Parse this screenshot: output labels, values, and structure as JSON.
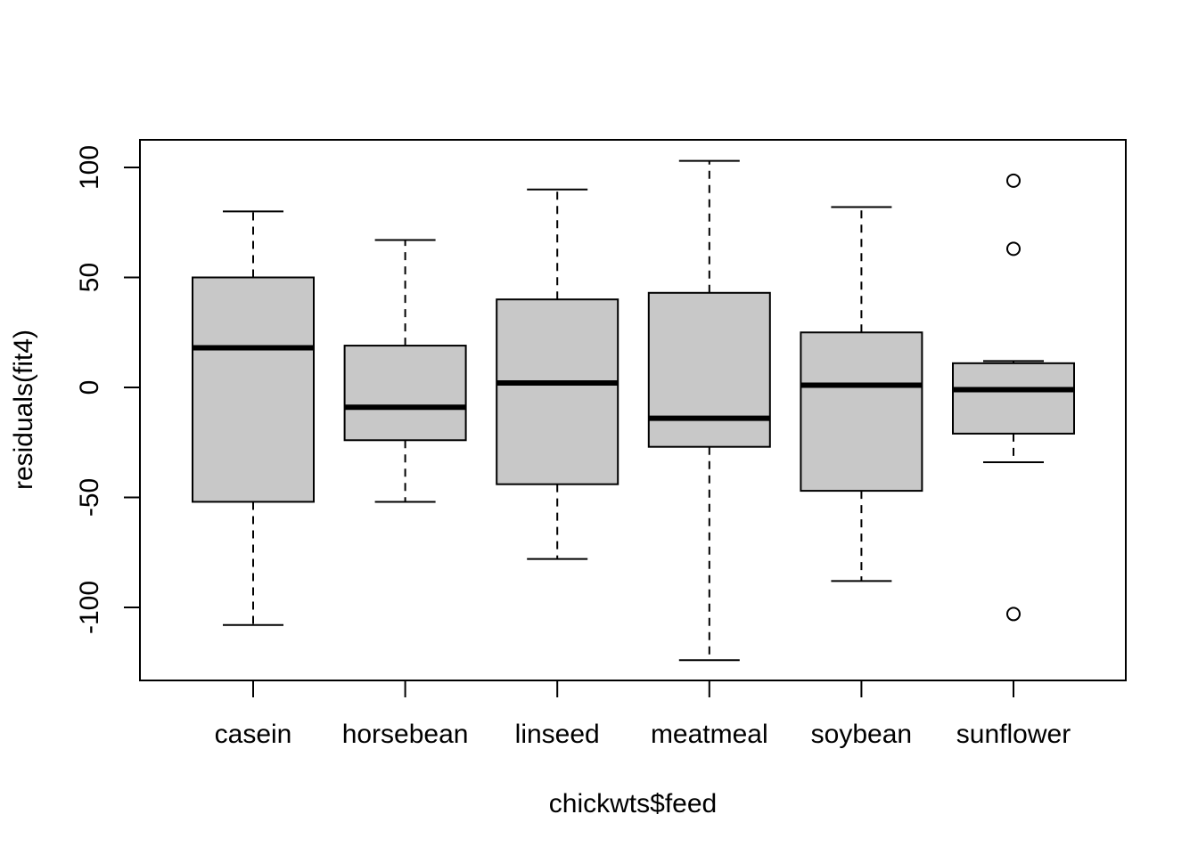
{
  "chart_data": {
    "type": "boxplot",
    "title": "",
    "xlabel": "chickwts$feed",
    "ylabel": "residuals(fit4)",
    "ylim": [
      -133,
      112
    ],
    "yticks": [
      -100,
      -50,
      0,
      50,
      100
    ],
    "ytick_labels": [
      "-100",
      "-50",
      "0",
      "50",
      "100"
    ],
    "categories": [
      "casein",
      "horsebean",
      "linseed",
      "meatmeal",
      "soybean",
      "sunflower"
    ],
    "boxes": [
      {
        "name": "casein",
        "whisker_low": -108,
        "q1": -52,
        "median": 18,
        "q3": 50,
        "whisker_high": 80,
        "outliers": []
      },
      {
        "name": "horsebean",
        "whisker_low": -52,
        "q1": -24,
        "median": -9,
        "q3": 19,
        "whisker_high": 67,
        "outliers": []
      },
      {
        "name": "linseed",
        "whisker_low": -78,
        "q1": -44,
        "median": 2,
        "q3": 40,
        "whisker_high": 90,
        "outliers": []
      },
      {
        "name": "meatmeal",
        "whisker_low": -124,
        "q1": -27,
        "median": -14,
        "q3": 43,
        "whisker_high": 103,
        "outliers": []
      },
      {
        "name": "soybean",
        "whisker_low": -88,
        "q1": -47,
        "median": 1,
        "q3": 25,
        "whisker_high": 82,
        "outliers": []
      },
      {
        "name": "sunflower",
        "whisker_low": -34,
        "q1": -21,
        "median": -1,
        "q3": 11,
        "whisker_high": 12,
        "outliers": [
          94,
          63,
          -103
        ]
      }
    ],
    "box_fill": "#c8c8c8",
    "line_color": "#000000",
    "grid": false,
    "legend": "none"
  }
}
